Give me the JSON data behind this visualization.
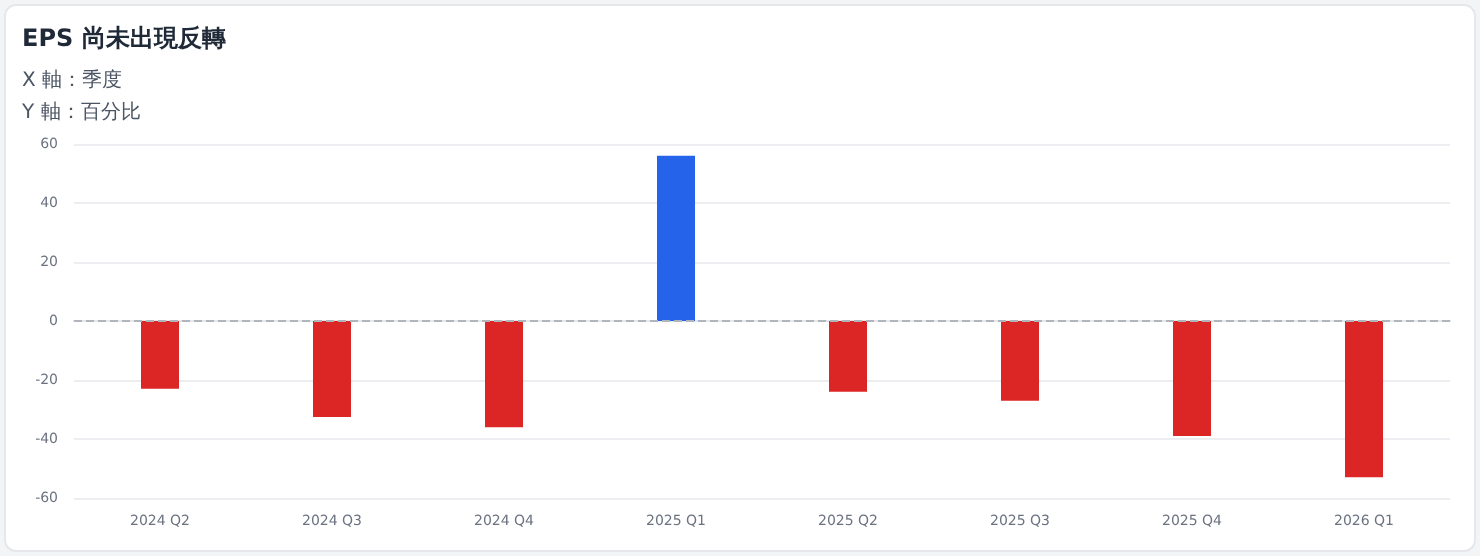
{
  "chart_data": {
    "type": "bar",
    "title": "EPS 尚未出現反轉",
    "annotations": [
      "X 軸：季度",
      "Y 軸：百分比"
    ],
    "categories": [
      "2024 Q2",
      "2024 Q3",
      "2024 Q4",
      "2025 Q1",
      "2025 Q2",
      "2025 Q3",
      "2025 Q4",
      "2026 Q1"
    ],
    "values": [
      -23,
      -32.5,
      -36,
      56,
      -24,
      -27,
      -39,
      -53
    ],
    "colors": [
      "#dc2626",
      "#dc2626",
      "#dc2626",
      "#2563eb",
      "#dc2626",
      "#dc2626",
      "#dc2626",
      "#dc2626"
    ],
    "ylim": [
      -60,
      60
    ],
    "yticks": [
      -60,
      -40,
      -20,
      0,
      20,
      40,
      60
    ],
    "grid": "y",
    "ref_lines": [
      {
        "axis": "y",
        "value": 0,
        "color": "#b0b4bb",
        "line_style": "dashed"
      }
    ]
  }
}
